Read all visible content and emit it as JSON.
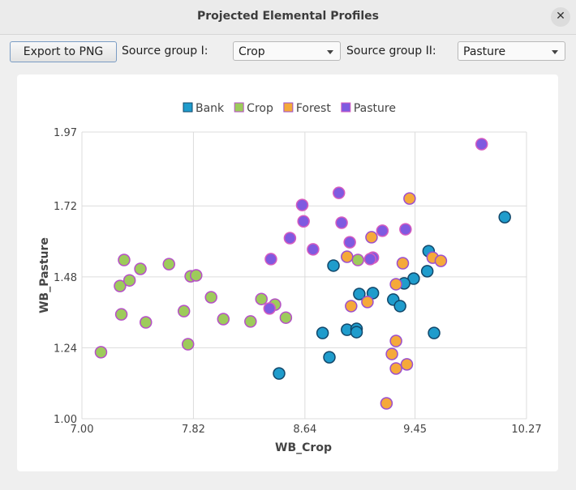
{
  "window": {
    "title": "Projected Elemental Profiles"
  },
  "controls": {
    "export_button": "Export to PNG",
    "source_group_1_label": "Source group I:",
    "source_group_1_value": "Crop",
    "source_group_2_label": "Source group II:",
    "source_group_2_value": "Pasture"
  },
  "chart_data": {
    "type": "scatter",
    "x_label": "WB_Crop",
    "y_label": "WB_Pasture",
    "grid": true,
    "legend": "top",
    "xlim": [
      7.0,
      10.27
    ],
    "ylim": [
      1.0,
      1.97
    ],
    "xticks": [
      {
        "value": 7.0,
        "label": "7.00"
      },
      7.82,
      8.64,
      9.45,
      10.27
    ],
    "yticks": [
      {
        "value": 1.0,
        "label": "1.00"
      },
      1.24,
      1.48,
      1.72,
      1.97
    ],
    "series": [
      {
        "name": "Bank",
        "color": "#1f9ccc",
        "x": [
          10.11,
          9.55,
          9.54,
          9.44,
          9.37,
          8.85,
          9.04,
          9.14,
          9.29,
          9.34,
          8.77,
          8.95,
          9.02,
          9.02,
          9.59,
          8.82,
          8.45
        ],
        "values": [
          1.682,
          1.567,
          1.499,
          1.474,
          1.458,
          1.518,
          1.422,
          1.425,
          1.403,
          1.381,
          1.29,
          1.301,
          1.304,
          1.293,
          1.29,
          1.208,
          1.153
        ]
      },
      {
        "name": "Crop",
        "color": "#9dcb5b",
        "x": [
          7.14,
          7.28,
          7.29,
          7.31,
          7.35,
          7.43,
          7.47,
          7.64,
          7.75,
          7.78,
          7.8,
          7.84,
          7.95,
          8.04,
          8.24,
          8.32,
          8.42,
          8.5,
          9.03
        ],
        "values": [
          1.225,
          1.449,
          1.353,
          1.537,
          1.468,
          1.507,
          1.326,
          1.523,
          1.364,
          1.252,
          1.482,
          1.485,
          1.411,
          1.337,
          1.329,
          1.405,
          1.386,
          1.342,
          1.537
        ]
      },
      {
        "name": "Forest",
        "color": "#f5a93a",
        "x": [
          9.41,
          9.13,
          8.95,
          9.58,
          9.64,
          9.36,
          9.31,
          8.98,
          9.1,
          9.31,
          9.28,
          9.31,
          9.39,
          9.24
        ],
        "values": [
          1.745,
          1.614,
          1.548,
          1.545,
          1.534,
          1.526,
          1.455,
          1.381,
          1.395,
          1.263,
          1.219,
          1.17,
          1.184,
          1.052
        ]
      },
      {
        "name": "Pasture",
        "color": "#7f5ae0",
        "x": [
          9.94,
          8.62,
          8.89,
          8.63,
          8.91,
          8.53,
          8.97,
          9.21,
          9.38,
          8.7,
          8.39,
          9.14,
          8.38,
          9.12
        ],
        "values": [
          1.929,
          1.723,
          1.764,
          1.668,
          1.663,
          1.611,
          1.597,
          1.636,
          1.641,
          1.573,
          1.54,
          1.545,
          1.373,
          1.54
        ]
      }
    ]
  }
}
